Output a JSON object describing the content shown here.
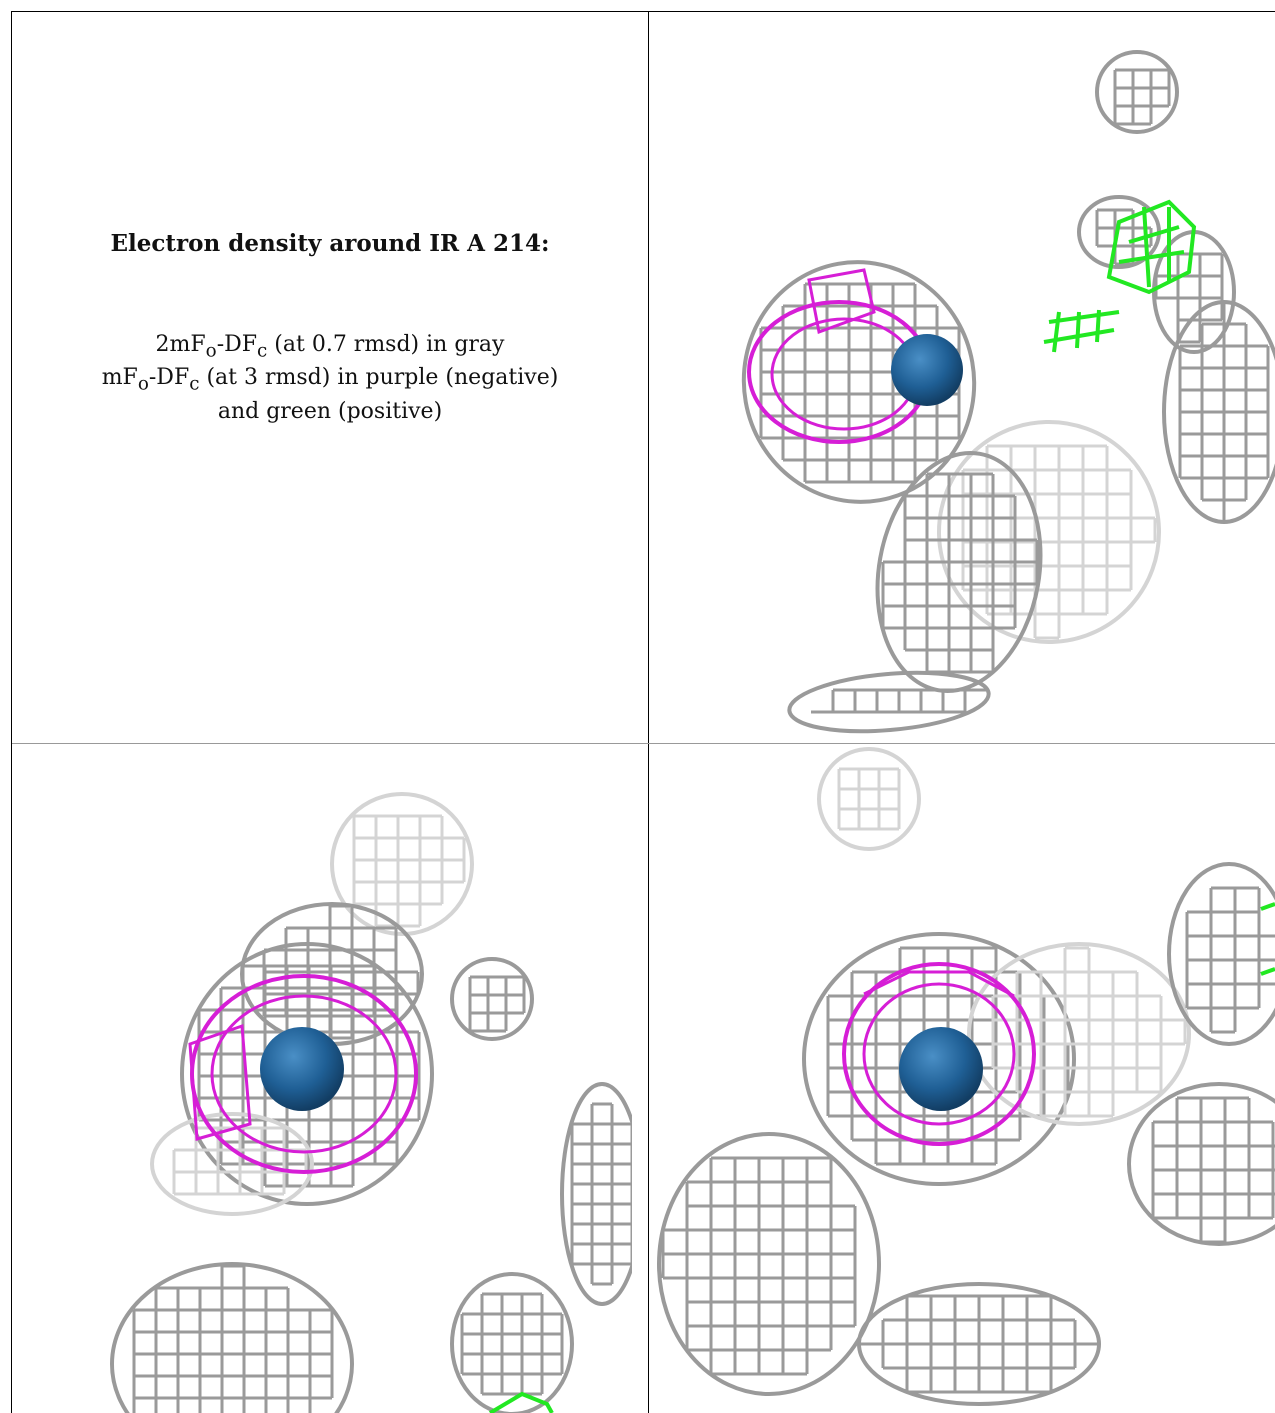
{
  "caption": {
    "title": "Electron density around IR A 214:",
    "line1_prefix": "2mF",
    "line1_sub_o": "o",
    "line1_mid": "-DF",
    "line1_sub_c": "c",
    "line1_suffix": " (at 0.7 rmsd) in gray",
    "line2_prefix": "mF",
    "line2_sub_o": "o",
    "line2_mid": "-DF",
    "line2_sub_c": "c",
    "line2_suffix": " (at 3 rmsd) in purple (negative)",
    "line3": "and green (positive)"
  },
  "colors": {
    "mesh_gray": "#9a9a9a",
    "mesh_light": "#d4d4d4",
    "negative_density": "#d61ed6",
    "positive_density": "#22e822",
    "ion_sphere": "#1f5f95"
  },
  "panels": [
    {
      "name": "view-1",
      "content": "density-mesh"
    },
    {
      "name": "view-2",
      "content": "density-mesh"
    },
    {
      "name": "view-3",
      "content": "density-mesh"
    }
  ]
}
